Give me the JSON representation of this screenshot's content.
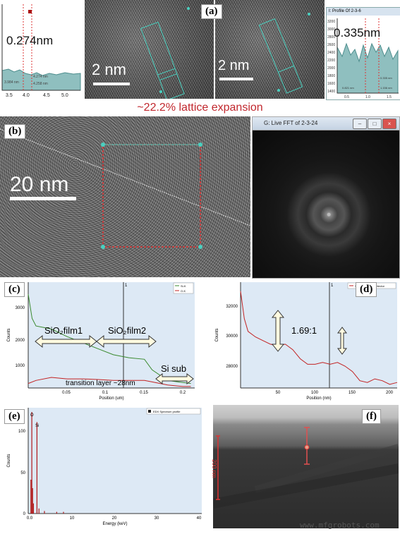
{
  "panel_labels": {
    "a": "(a)",
    "b": "(b)",
    "c": "(c)",
    "d": "(d)",
    "e": "(e)",
    "f": "(f)"
  },
  "panel_a": {
    "left_profile": {
      "measurement": "0.274nm",
      "x_ticks": [
        "3.5",
        "4.0",
        "4.5",
        "5.0"
      ],
      "readout_left": "3.984 nm",
      "readout_right": "4.274 nm",
      "readout_right2": "4.258 nm"
    },
    "scale_left": "2 nm",
    "scale_right": "2 nm",
    "right_profile": {
      "title": "I: Profile Of 2-3-6",
      "measurement": "0.335nm",
      "y_ticks": [
        "3200",
        "3000",
        "2800",
        "2600",
        "2400",
        "2200",
        "2000",
        "1800",
        "1600",
        "1400"
      ],
      "x_ticks": [
        "0.5",
        "1.0",
        "1.5"
      ],
      "readout_top": "0.335 nm",
      "readout_left": "0.821 nm",
      "readout_right": "1.156 nm"
    },
    "caption": "~22.2% lattice expansion"
  },
  "panel_b": {
    "scale": "20 nm",
    "fft_window_title": "G: Live FFT of 2-3-24",
    "window_buttons": [
      "–",
      "□",
      "×"
    ]
  },
  "panel_c": {
    "chart_data": {
      "type": "line",
      "xlabel": "Position (um)",
      "ylabel": "Counts",
      "x_ticks": [
        "0.05",
        "0.1",
        "0.15",
        "0.2"
      ],
      "y_ticks": [
        "3000",
        "2000",
        "1000"
      ],
      "xlim": [
        0,
        0.215
      ],
      "ylim": [
        0,
        3500
      ],
      "legend": [
        "Si-K",
        "O-K"
      ],
      "marker_label": "1",
      "series": [
        {
          "name": "Si-K",
          "x": [
            0,
            0.005,
            0.01,
            0.02,
            0.03,
            0.05,
            0.07,
            0.09,
            0.11,
            0.13,
            0.15,
            0.16,
            0.18,
            0.2,
            0.21
          ],
          "values": [
            3100,
            2300,
            2050,
            2000,
            1950,
            1700,
            1500,
            1300,
            1100,
            1000,
            950,
            600,
            250,
            180,
            150
          ]
        },
        {
          "name": "O-K",
          "x": [
            0,
            0.01,
            0.03,
            0.05,
            0.07,
            0.09,
            0.11,
            0.13,
            0.15,
            0.16,
            0.18,
            0.2,
            0.21
          ],
          "values": [
            150,
            250,
            350,
            300,
            300,
            280,
            250,
            250,
            250,
            200,
            100,
            50,
            50
          ]
        }
      ],
      "annotations": [
        "SiO₂film1",
        "SiO₂film2",
        "Si sub",
        "transition layer ~28nm"
      ]
    }
  },
  "panel_d": {
    "chart_data": {
      "type": "line",
      "xlabel": "Position (nm)",
      "ylabel": "Counts",
      "x_ticks": [
        "50",
        "100",
        "150",
        "200"
      ],
      "y_ticks": [
        "32000",
        "30000",
        "28000"
      ],
      "xlim": [
        0,
        210
      ],
      "ylim": [
        26700,
        32500
      ],
      "legend": [
        "STEM HAADF Detector"
      ],
      "marker_label": "1",
      "series": [
        {
          "name": "STEM HAADF Detector",
          "x": [
            0,
            5,
            10,
            20,
            30,
            40,
            50,
            60,
            70,
            80,
            90,
            100,
            110,
            120,
            130,
            140,
            150,
            160,
            170,
            180,
            190,
            200,
            210
          ],
          "values": [
            32000,
            30500,
            29800,
            29500,
            29300,
            29100,
            29000,
            29100,
            28800,
            28300,
            28000,
            28000,
            28100,
            28000,
            28100,
            27900,
            27600,
            27100,
            27000,
            27200,
            27100,
            26900,
            27000
          ]
        }
      ],
      "annotations": [
        "1.69:1"
      ]
    }
  },
  "panel_e": {
    "chart_data": {
      "type": "bar",
      "xlabel": "Energy (keV)",
      "ylabel": "Counts",
      "x_ticks": [
        "0.0",
        "10",
        "20",
        "30",
        "40"
      ],
      "y_ticks": [
        "100",
        "50",
        "0"
      ],
      "xlim": [
        0,
        40
      ],
      "ylim": [
        0,
        125
      ],
      "legend": [
        "EDX Spectrum profile"
      ],
      "peak_labels": [
        "O",
        "Si"
      ],
      "peaks": [
        {
          "x": 0.3,
          "y": 40
        },
        {
          "x": 0.52,
          "y": 120
        },
        {
          "x": 0.7,
          "y": 30
        },
        {
          "x": 0.9,
          "y": 12
        },
        {
          "x": 1.74,
          "y": 108
        },
        {
          "x": 2.2,
          "y": 6
        },
        {
          "x": 3.5,
          "y": 3
        },
        {
          "x": 6.4,
          "y": 2
        },
        {
          "x": 8.0,
          "y": 2
        }
      ]
    }
  },
  "panel_f": {
    "scale": "200 nm"
  },
  "watermark": "www.mfgrobots.com"
}
